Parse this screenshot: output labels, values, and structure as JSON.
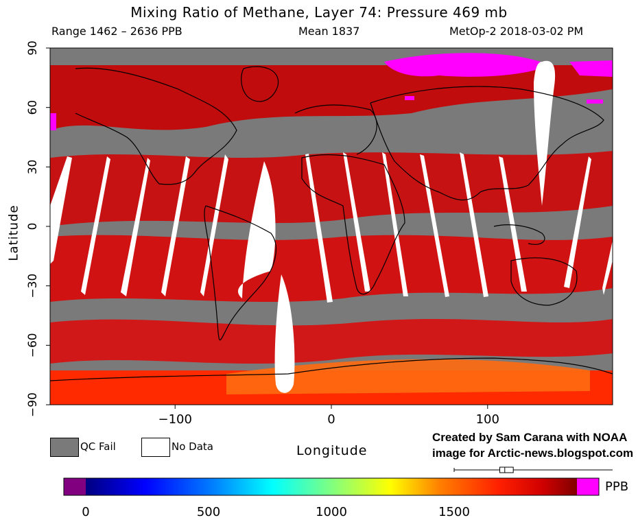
{
  "chart_data": {
    "type": "heatmap",
    "title": "Mixing Ratio of Methane, Layer 74: Pressure 469 mb",
    "range_text": "Range 1462 – 2636 PPB",
    "mean_text": "Mean 1837",
    "source_text": "MetOp-2 2018-03-02 PM",
    "xlabel": "Longitude",
    "ylabel": "Latitude",
    "xlim": [
      -180,
      180
    ],
    "ylim": [
      -90,
      90
    ],
    "x_ticks": [
      -100,
      0,
      100
    ],
    "y_ticks": [
      90,
      60,
      30,
      0,
      -30,
      -60,
      -90
    ],
    "legend": [
      {
        "label": "QC Fail",
        "color": "#7a7a7a"
      },
      {
        "label": "No Data",
        "color": "#ffffff"
      }
    ],
    "colorbar": {
      "unit": "PPB",
      "ticks": [
        0,
        500,
        1000,
        1500
      ],
      "range": [
        0,
        2000
      ]
    },
    "range": [
      1462,
      2636
    ],
    "mean": 1837,
    "boxplot": {
      "whisker_low": 1462,
      "box_low": 1800,
      "median": 1837,
      "box_high": 1900,
      "whisker_high": 2636
    }
  },
  "credit": {
    "line1": "Created by Sam Carana with NOAA",
    "line2": "image for Arctic-news.blogspot.com"
  },
  "colors": {
    "qc_fail": "#7a7a7a",
    "methane_high": "#d40000",
    "methane_extreme": "#ff00ff"
  }
}
